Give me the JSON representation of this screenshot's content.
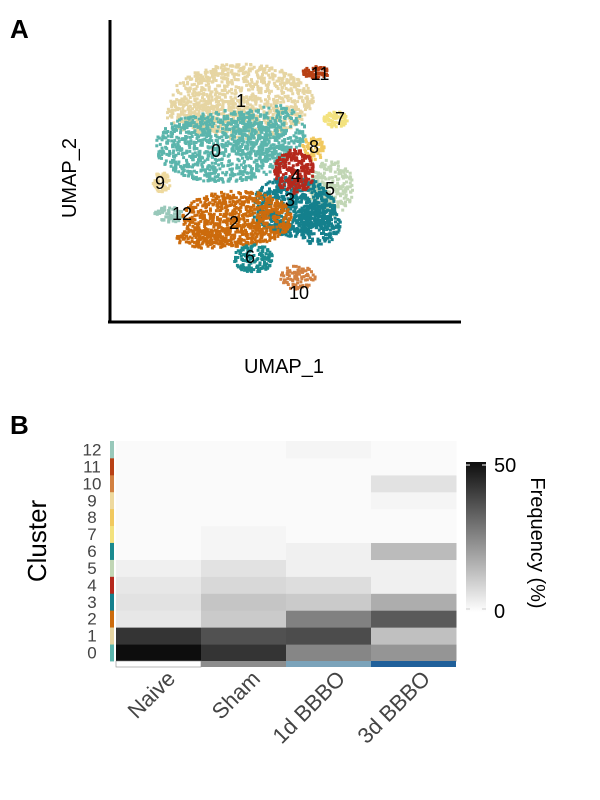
{
  "panels": {
    "a": "A",
    "b": "B"
  },
  "umap": {
    "xlabel": "UMAP_1",
    "ylabel": "UMAP_2",
    "cluster_colors": {
      "0": "#5bb5ac",
      "1": "#e6d5a2",
      "2": "#cc6b0c",
      "3": "#14808d",
      "4": "#b5281c",
      "5": "#c1d6b5",
      "6": "#1a8a8e",
      "7": "#f3e27e",
      "8": "#f1c95f",
      "9": "#eed99e",
      "10": "#d28041",
      "11": "#b84115",
      "12": "#98c8ba"
    },
    "clusters": [
      {
        "label": "0",
        "color": "#5bb5ac"
      },
      {
        "label": "1",
        "color": "#e6d5a2"
      },
      {
        "label": "2",
        "color": "#cc6b0c"
      },
      {
        "label": "3",
        "color": "#14808d"
      },
      {
        "label": "4",
        "color": "#b5281c"
      },
      {
        "label": "5",
        "color": "#c1d6b5"
      },
      {
        "label": "6",
        "color": "#1a8a8e"
      },
      {
        "label": "7",
        "color": "#f3e27e"
      },
      {
        "label": "8",
        "color": "#f1c95f"
      },
      {
        "label": "9",
        "color": "#eed99e"
      },
      {
        "label": "10",
        "color": "#d28041"
      },
      {
        "label": "11",
        "color": "#b84115"
      },
      {
        "label": "12",
        "color": "#98c8ba"
      }
    ]
  },
  "chart_data": {
    "type": "heatmap",
    "ylabel": "Cluster",
    "categories": [
      "Naive",
      "Sham",
      "1d BBBO",
      "3d BBBO"
    ],
    "clusters": [
      "0",
      "1",
      "2",
      "3",
      "4",
      "5",
      "6",
      "7",
      "8",
      "9",
      "10",
      "11",
      "12"
    ],
    "cluster_colors": [
      "#5bb5ac",
      "#e6d5a2",
      "#cc6b0c",
      "#14808d",
      "#b5281c",
      "#c1d6b5",
      "#1a8a8e",
      "#f3e27e",
      "#f1c95f",
      "#eed99e",
      "#d28041",
      "#b84115",
      "#98c8ba"
    ],
    "condition_colors": [
      "#ffffff",
      "#8c8c8c",
      "#7ba3ba",
      "#20609a"
    ],
    "values": [
      [
        50,
        42,
        25,
        22
      ],
      [
        42,
        36,
        37,
        13
      ],
      [
        5,
        11,
        26,
        34
      ],
      [
        6,
        12,
        11,
        17
      ],
      [
        5,
        8,
        7,
        3
      ],
      [
        3,
        6,
        3,
        3
      ],
      [
        1,
        2,
        3,
        14
      ],
      [
        1,
        2,
        1,
        1
      ],
      [
        1,
        1,
        1,
        1
      ],
      [
        1,
        1,
        1,
        2
      ],
      [
        1,
        1,
        1,
        6
      ],
      [
        1,
        1,
        1,
        1
      ],
      [
        1,
        1,
        2,
        1
      ]
    ],
    "legend": {
      "title": "Frequency (%)",
      "max_label": "50",
      "min_label": "0",
      "range": [
        0,
        50
      ],
      "position": "right"
    }
  }
}
